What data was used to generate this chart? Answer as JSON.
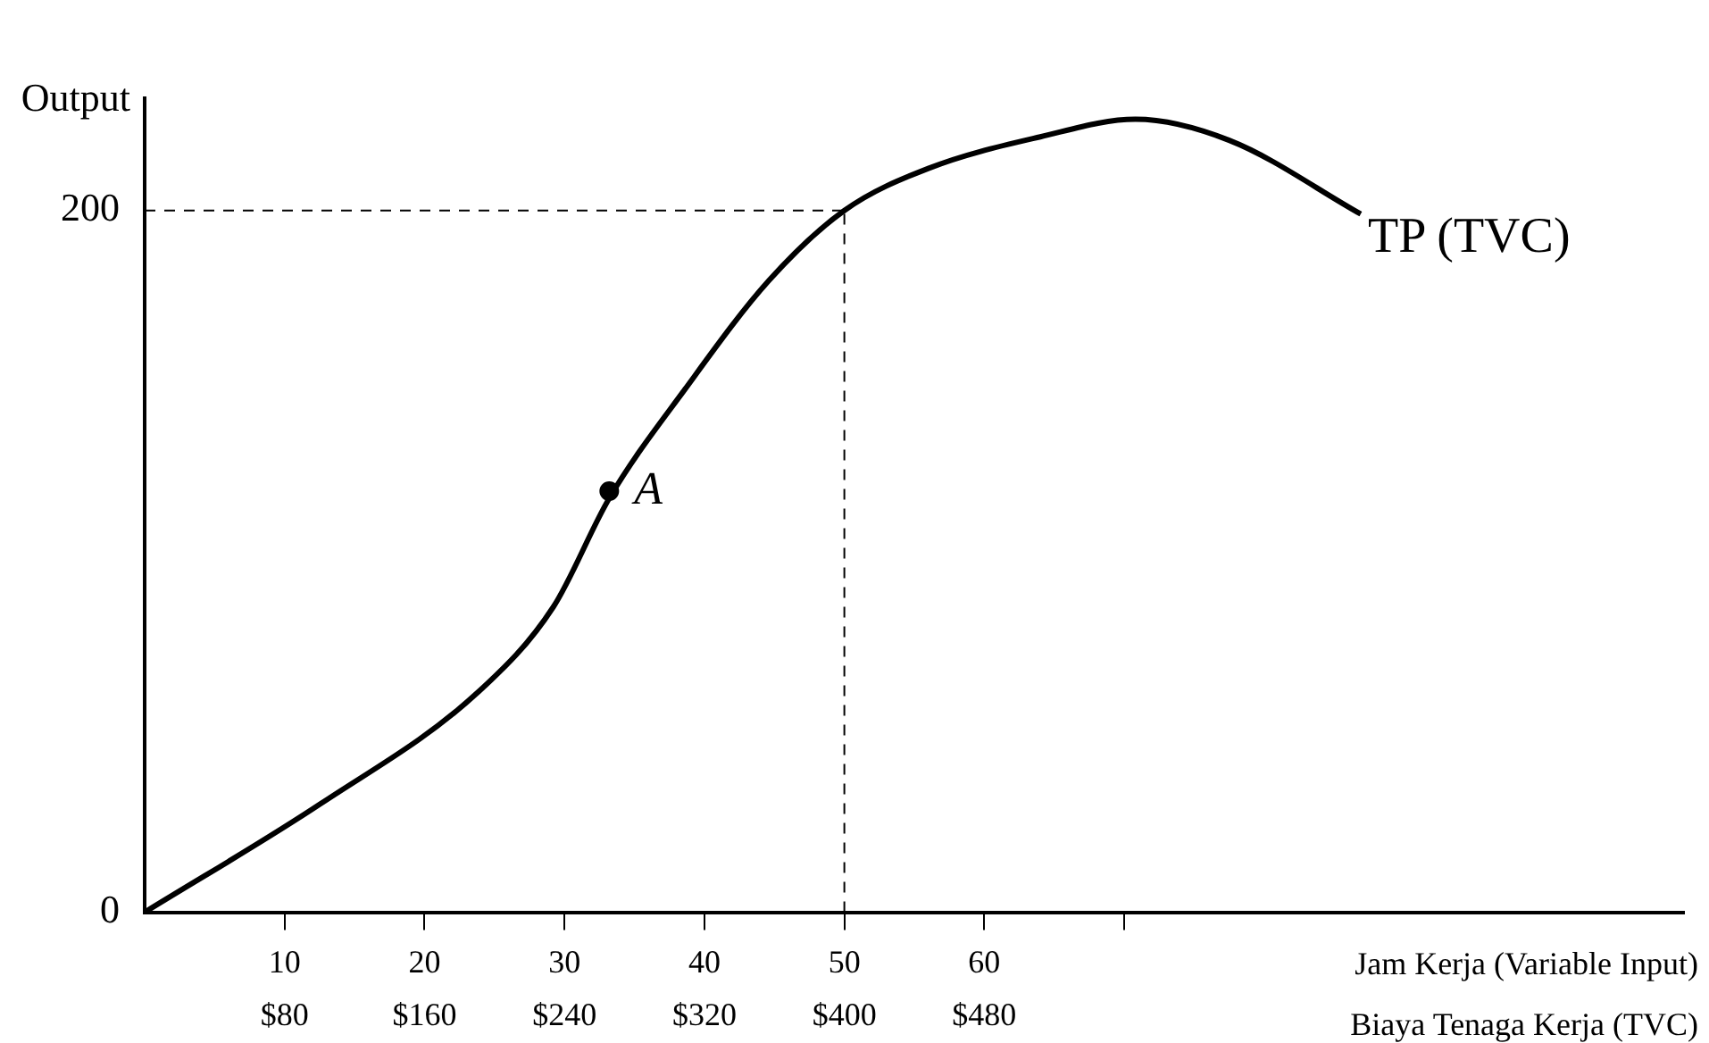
{
  "chart_data": {
    "type": "line",
    "ylabel": "Output",
    "xlabel": "Jam Kerja (Variable Input)\nBiaya Tenaga Kerja (TVC)",
    "xlim": [
      0,
      110
    ],
    "ylim": [
      0,
      232
    ],
    "xticks": [
      10,
      20,
      30,
      40,
      50,
      60,
      {
        "value": 70,
        "label": null
      }
    ],
    "x2lim": [
      0,
      880
    ],
    "x2ticks": [
      {
        "value": 80,
        "label": "$80"
      },
      {
        "value": 160,
        "label": "$160"
      },
      {
        "value": 240,
        "label": "$240"
      },
      {
        "value": 320,
        "label": "$320"
      },
      {
        "value": 400,
        "label": "$400"
      },
      {
        "value": 480,
        "label": "$480"
      }
    ],
    "yticks": [
      0,
      200
    ],
    "series": [
      {
        "name": "TP (TVC)",
        "color": "#000000",
        "x": [
          0,
          12.6,
          23.9,
          29.2,
          33.2,
          38.6,
          44.6,
          50,
          56,
          64,
          70.8,
          77.5,
          86.9
        ],
        "values": [
          0,
          31,
          63,
          87,
          118,
          149,
          180,
          200,
          212,
          221,
          226,
          220,
          199
        ],
        "marker": "none"
      },
      {
        "type": "scatter",
        "color": "#000000",
        "x": [
          33.2
        ],
        "values": [
          120
        ],
        "marker": "circle"
      }
    ],
    "annotations": [
      {
        "text": "A",
        "x": 33.2,
        "y": 120
      }
    ],
    "ref_lines": [
      {
        "axis": "x",
        "value": 50,
        "line_style": "dashed"
      },
      {
        "axis": "y",
        "value": 200,
        "line_style": "dashed"
      }
    ],
    "grid": false,
    "legend": false,
    "line_style": "solid"
  }
}
